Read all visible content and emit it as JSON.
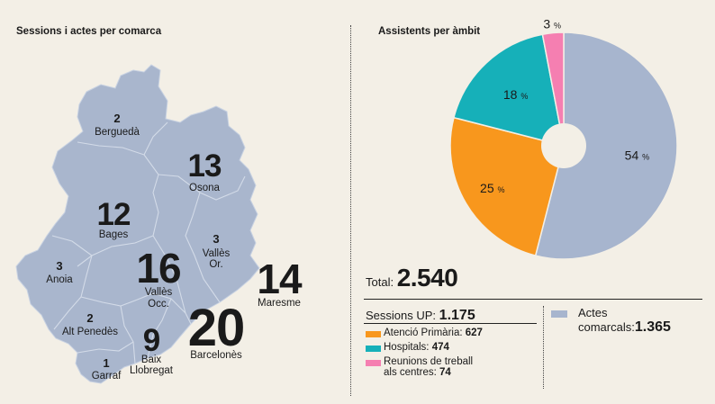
{
  "left_title": "Sessions i actes per comarca",
  "right_title": "Assistents per àmbit",
  "comarques": [
    {
      "name": "Berguedà",
      "value": "2",
      "size": "s"
    },
    {
      "name": "Osona",
      "value": "13",
      "size": "l"
    },
    {
      "name": "Bages",
      "value": "12",
      "size": "l"
    },
    {
      "name": "Vallès Or.",
      "value": "3",
      "size": "s"
    },
    {
      "name": "Anoia",
      "value": "3",
      "size": "s"
    },
    {
      "name": "Vallès Occ.",
      "value": "16",
      "size": "xl"
    },
    {
      "name": "Maresme",
      "value": "14",
      "size": "xl"
    },
    {
      "name": "Alt Penedès",
      "value": "2",
      "size": "s"
    },
    {
      "name": "Barcelonès",
      "value": "20",
      "size": "xxl"
    },
    {
      "name": "Baix Llobregat",
      "value": "9",
      "size": "l"
    },
    {
      "name": "Garraf",
      "value": "1",
      "size": "s"
    }
  ],
  "chart_data": {
    "type": "pie",
    "title": "Assistents per àmbit",
    "categories": [
      "Actes comarcals",
      "Atenció Primària",
      "Hospitals",
      "Reunions de treball als centres"
    ],
    "values": [
      54,
      25,
      18,
      3
    ],
    "labels": [
      "54 %",
      "25 %",
      "18 %",
      "3 %"
    ],
    "unit": "%",
    "colors": [
      "#a7b5ce",
      "#f8971d",
      "#16b0b9",
      "#f57fb1"
    ]
  },
  "summary": {
    "total_label": "Total:",
    "total_value": "2.540",
    "sessions_label": "Sessions UP:",
    "sessions_value": "1.175",
    "breakdown": [
      {
        "label": "Atenció Primària:",
        "value": "627",
        "color": "#f8971d"
      },
      {
        "label": "Hospitals:",
        "value": "474",
        "color": "#16b0b9"
      },
      {
        "label_line1": "Reunions de treball",
        "label_line2": "als centres:",
        "value": "74",
        "color": "#f57fb1"
      }
    ],
    "actes_line1": "Actes",
    "actes_line2": "comarcals:",
    "actes_value": "1.365",
    "actes_color": "#a7b5ce"
  }
}
